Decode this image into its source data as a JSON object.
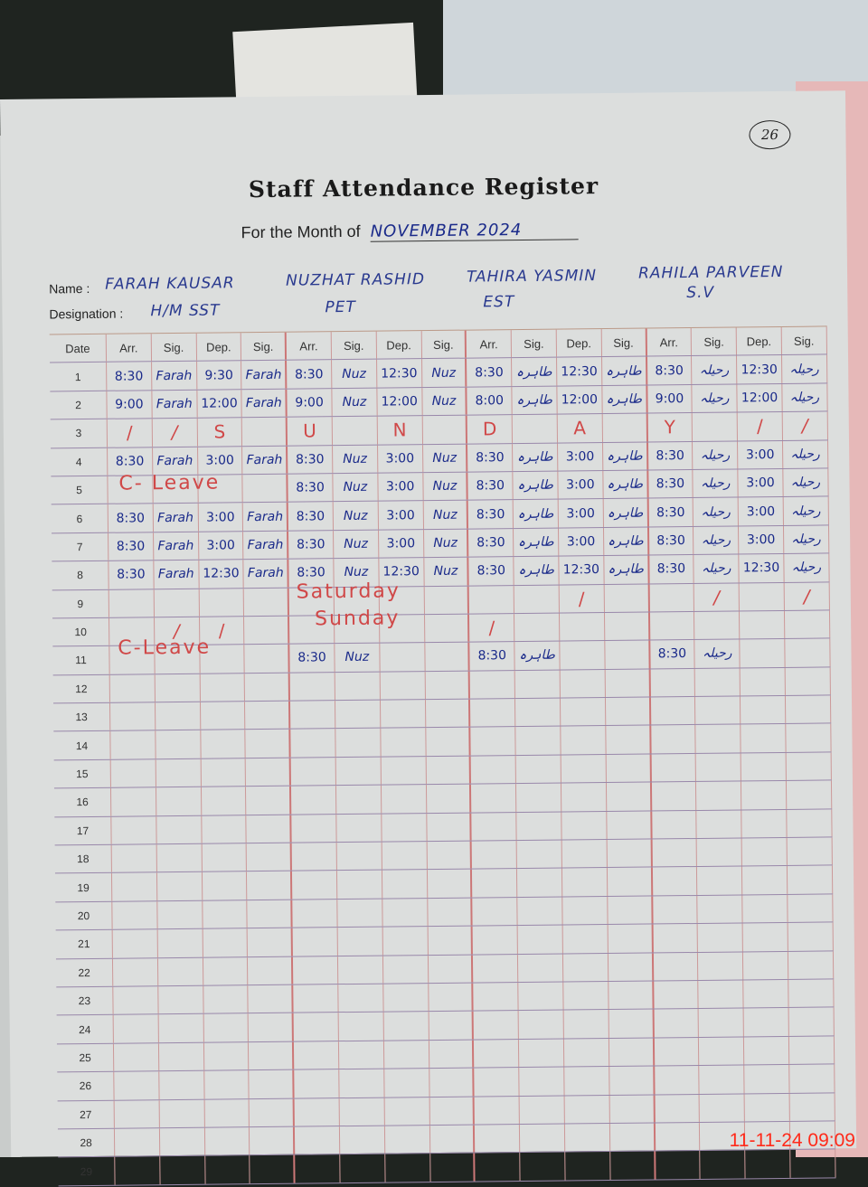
{
  "page_number": "26",
  "title": "Staff Attendance Register",
  "month_label": "For the Month of",
  "month_value": "NOVEMBER 2024",
  "name_label": "Name :",
  "designation_label": "Designation :",
  "staff": [
    {
      "name": "FARAH KAUSAR",
      "designation": "H/M SST"
    },
    {
      "name": "NUZHAT RASHID",
      "designation": "PET"
    },
    {
      "name": "TAHIRA YASMIN",
      "designation": "EST"
    },
    {
      "name": "RAHILA PARVEEN",
      "designation": "S.V"
    }
  ],
  "columns": [
    "Date",
    "Arr.",
    "Sig.",
    "Dep.",
    "Sig.",
    "Arr.",
    "Sig.",
    "Dep.",
    "Sig.",
    "Arr.",
    "Sig.",
    "Dep.",
    "Sig.",
    "Arr.",
    "Sig.",
    "Dep.",
    "Sig."
  ],
  "rows": [
    {
      "date": "1",
      "cells": [
        "8:30",
        "Farah",
        "9:30",
        "Farah",
        "8:30",
        "Nuz",
        "12:30",
        "Nuz",
        "8:30",
        "طاہرہ",
        "12:30",
        "طاہرہ",
        "8:30",
        "رحیلہ",
        "12:30",
        "رحیلہ"
      ]
    },
    {
      "date": "2",
      "cells": [
        "9:00",
        "Farah",
        "12:00",
        "Farah",
        "9:00",
        "Nuz",
        "12:00",
        "Nuz",
        "8:00",
        "طاہرہ",
        "12:00",
        "طاہرہ",
        "9:00",
        "رحیلہ",
        "12:00",
        "رحیلہ"
      ]
    },
    {
      "date": "3",
      "cells": [
        "/",
        "/",
        "S",
        "",
        "U",
        "",
        "N",
        "",
        "D",
        "",
        "A",
        "",
        "Y",
        "",
        "/",
        "/"
      ],
      "red": true
    },
    {
      "date": "4",
      "cells": [
        "8:30",
        "Farah",
        "3:00",
        "Farah",
        "8:30",
        "Nuz",
        "3:00",
        "Nuz",
        "8:30",
        "طاہرہ",
        "3:00",
        "طاہرہ",
        "8:30",
        "رحیلہ",
        "3:00",
        "رحیلہ"
      ]
    },
    {
      "date": "5",
      "cells": [
        "",
        "",
        "",
        "",
        "8:30",
        "Nuz",
        "3:00",
        "Nuz",
        "8:30",
        "طاہرہ",
        "3:00",
        "طاہرہ",
        "8:30",
        "رحیلہ",
        "3:00",
        "رحیلہ"
      ]
    },
    {
      "date": "6",
      "cells": [
        "8:30",
        "Farah",
        "3:00",
        "Farah",
        "8:30",
        "Nuz",
        "3:00",
        "Nuz",
        "8:30",
        "طاہرہ",
        "3:00",
        "طاہرہ",
        "8:30",
        "رحیلہ",
        "3:00",
        "رحیلہ"
      ]
    },
    {
      "date": "7",
      "cells": [
        "8:30",
        "Farah",
        "3:00",
        "Farah",
        "8:30",
        "Nuz",
        "3:00",
        "Nuz",
        "8:30",
        "طاہرہ",
        "3:00",
        "طاہرہ",
        "8:30",
        "رحیلہ",
        "3:00",
        "رحیلہ"
      ]
    },
    {
      "date": "8",
      "cells": [
        "8:30",
        "Farah",
        "12:30",
        "Farah",
        "8:30",
        "Nuz",
        "12:30",
        "Nuz",
        "8:30",
        "طاہرہ",
        "12:30",
        "طاہرہ",
        "8:30",
        "رحیلہ",
        "12:30",
        "رحیلہ"
      ]
    },
    {
      "date": "9",
      "cells": [
        "",
        "",
        "",
        "",
        "",
        "",
        "",
        "",
        "",
        "",
        "/",
        "",
        "",
        "/",
        "",
        "/"
      ],
      "red": true
    },
    {
      "date": "10",
      "cells": [
        "",
        "/",
        "/",
        "",
        "",
        "",
        "",
        "",
        "/",
        "",
        "",
        "",
        "",
        "",
        "",
        ""
      ],
      "red": true
    },
    {
      "date": "11",
      "cells": [
        "",
        "",
        "",
        "",
        "8:30",
        "Nuz",
        "",
        "",
        "8:30",
        "طاہرہ",
        "",
        "",
        "8:30",
        "رحیلہ",
        "",
        ""
      ]
    },
    {
      "date": "12",
      "cells": []
    },
    {
      "date": "13",
      "cells": []
    },
    {
      "date": "14",
      "cells": []
    },
    {
      "date": "15",
      "cells": []
    },
    {
      "date": "16",
      "cells": []
    },
    {
      "date": "17",
      "cells": []
    },
    {
      "date": "18",
      "cells": []
    },
    {
      "date": "19",
      "cells": []
    },
    {
      "date": "20",
      "cells": []
    },
    {
      "date": "21",
      "cells": []
    },
    {
      "date": "22",
      "cells": []
    },
    {
      "date": "23",
      "cells": []
    },
    {
      "date": "24",
      "cells": []
    },
    {
      "date": "25",
      "cells": []
    },
    {
      "date": "26",
      "cells": []
    },
    {
      "date": "27",
      "cells": []
    },
    {
      "date": "28",
      "cells": []
    },
    {
      "date": "29",
      "cells": []
    }
  ],
  "notes": {
    "leave_day5": "C- Leave",
    "leave_day11": "C-Leave",
    "saturday": "Saturday",
    "sunday": "Sunday"
  },
  "camera_timestamp": "11-11-24  09:09",
  "colors": {
    "ink_blue": "#1a2a8a",
    "ink_red": "#d04848",
    "timestamp": "#ff2a1a"
  }
}
